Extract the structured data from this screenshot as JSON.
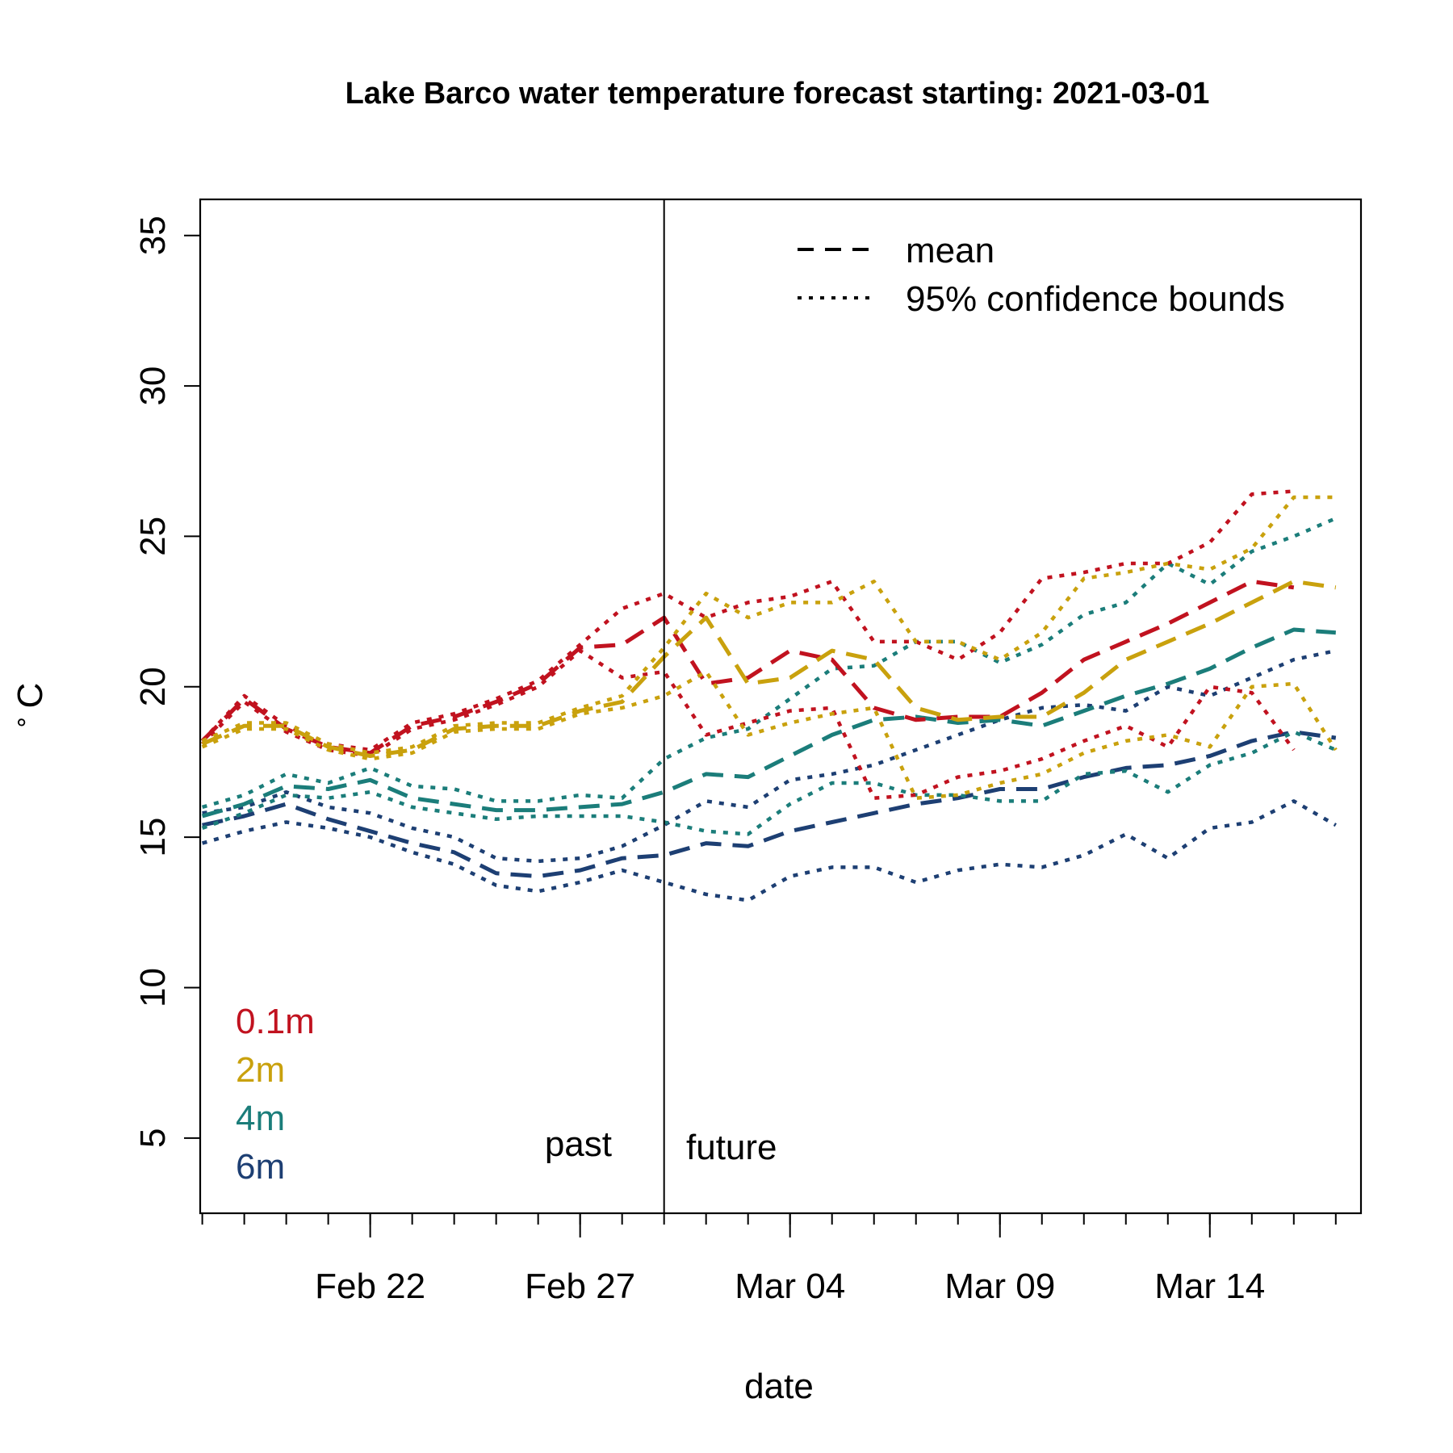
{
  "chart_data": {
    "type": "line",
    "title": "Lake Barco water temperature forecast starting: 2021-03-01",
    "xlabel": "date",
    "ylabel": "°C",
    "ylabel_parts": {
      "degree": "∘",
      "unit": "C"
    },
    "x_axis": {
      "start_date": "2021-02-18",
      "end_date": "2021-03-17",
      "tick_labels": [
        {
          "date": "2021-02-22",
          "label": "Feb 22"
        },
        {
          "date": "2021-02-27",
          "label": "Feb 27"
        },
        {
          "date": "2021-03-04",
          "label": "Mar 04"
        },
        {
          "date": "2021-03-09",
          "label": "Mar 09"
        },
        {
          "date": "2021-03-14",
          "label": "Mar 14"
        }
      ],
      "xlim": [
        "2021-02-17.9",
        "2021-03-17.6"
      ]
    },
    "y_axis": {
      "ylim": [
        2.5,
        36.2
      ],
      "ticks": [
        5,
        10,
        15,
        20,
        25,
        30,
        35
      ]
    },
    "forecast_start": "2021-03-01",
    "annotations": {
      "past": "past",
      "future": "future"
    },
    "legend": {
      "placement": "top-right",
      "entries": [
        {
          "label": "mean",
          "style": "dashed"
        },
        {
          "label": "95% confidence bounds",
          "style": "dotted"
        }
      ]
    },
    "depth_legend": {
      "placement": "bottom-left",
      "entries": [
        {
          "label": "0.1m",
          "color": "#c1121f"
        },
        {
          "label": "2m",
          "color": "#c9a10d"
        },
        {
          "label": "4m",
          "color": "#1b7d7a"
        },
        {
          "label": "6m",
          "color": "#1d3f73"
        }
      ]
    },
    "dates": [
      "2021-02-18",
      "2021-02-19",
      "2021-02-20",
      "2021-02-21",
      "2021-02-22",
      "2021-02-23",
      "2021-02-24",
      "2021-02-25",
      "2021-02-26",
      "2021-02-27",
      "2021-02-28",
      "2021-03-01",
      "2021-03-02",
      "2021-03-03",
      "2021-03-04",
      "2021-03-05",
      "2021-03-06",
      "2021-03-07",
      "2021-03-08",
      "2021-03-09",
      "2021-03-10",
      "2021-03-11",
      "2021-03-12",
      "2021-03-13",
      "2021-03-14",
      "2021-03-15",
      "2021-03-16",
      "2021-03-17"
    ],
    "series": [
      {
        "name": "0.1m",
        "color": "#c1121f",
        "mean": [
          18.2,
          19.6,
          18.6,
          18.0,
          17.8,
          18.7,
          19.0,
          19.5,
          20.1,
          21.3,
          21.4,
          22.3,
          20.1,
          20.3,
          21.2,
          20.9,
          19.3,
          18.9,
          19.0,
          19.0,
          19.8,
          20.9,
          21.5,
          22.1,
          22.8,
          23.5,
          23.3,
          null
        ],
        "upper": [
          18.2,
          19.7,
          18.7,
          18.1,
          17.9,
          18.8,
          19.1,
          19.6,
          20.2,
          21.4,
          22.6,
          23.1,
          22.3,
          22.8,
          23.0,
          23.5,
          21.5,
          21.5,
          20.9,
          21.8,
          23.6,
          23.8,
          24.1,
          24.1,
          24.8,
          26.4,
          26.5,
          null
        ],
        "lower": [
          18.1,
          19.5,
          18.5,
          17.9,
          17.7,
          18.6,
          18.9,
          19.4,
          20.0,
          21.2,
          20.3,
          20.5,
          18.4,
          18.8,
          19.2,
          19.3,
          16.3,
          16.4,
          17.0,
          17.2,
          17.6,
          18.2,
          18.7,
          18.0,
          20.0,
          19.8,
          17.9,
          null
        ]
      },
      {
        "name": "2m",
        "color": "#c9a10d",
        "mean": [
          18.1,
          18.7,
          18.7,
          18.0,
          17.7,
          17.9,
          18.6,
          18.7,
          18.7,
          19.2,
          19.5,
          21.0,
          22.3,
          20.1,
          20.3,
          21.2,
          20.9,
          19.3,
          18.9,
          19.0,
          19.0,
          19.8,
          20.9,
          21.5,
          22.1,
          22.8,
          23.5,
          23.3
        ],
        "upper": [
          18.2,
          18.8,
          18.8,
          18.1,
          17.8,
          18.0,
          18.7,
          18.8,
          18.8,
          19.3,
          19.7,
          21.3,
          23.1,
          22.3,
          22.8,
          22.8,
          23.5,
          21.5,
          21.5,
          20.9,
          21.8,
          23.6,
          23.8,
          24.1,
          23.9,
          24.6,
          26.3,
          26.3
        ],
        "lower": [
          18.0,
          18.6,
          18.6,
          17.9,
          17.6,
          17.8,
          18.5,
          18.6,
          18.6,
          19.1,
          19.3,
          19.7,
          20.5,
          18.4,
          18.8,
          19.1,
          19.3,
          16.3,
          16.4,
          16.8,
          17.1,
          17.8,
          18.2,
          18.4,
          18.0,
          20.0,
          20.1,
          17.9
        ]
      },
      {
        "name": "4m",
        "color": "#1b7d7a",
        "mean": [
          15.7,
          16.1,
          16.7,
          16.6,
          16.9,
          16.3,
          16.1,
          15.9,
          15.9,
          16.0,
          16.1,
          16.5,
          17.1,
          17.0,
          17.7,
          18.4,
          18.9,
          19.0,
          18.8,
          18.9,
          18.7,
          19.2,
          19.7,
          20.1,
          20.6,
          21.3,
          21.9,
          21.8
        ],
        "upper": [
          16.0,
          16.4,
          17.1,
          16.8,
          17.3,
          16.7,
          16.6,
          16.2,
          16.2,
          16.4,
          16.3,
          17.6,
          18.3,
          18.6,
          19.6,
          20.6,
          20.7,
          21.5,
          21.5,
          20.8,
          21.4,
          22.4,
          22.8,
          24.1,
          23.4,
          24.5,
          25.0,
          25.6
        ],
        "lower": [
          15.3,
          15.8,
          16.4,
          16.3,
          16.5,
          16.0,
          15.8,
          15.6,
          15.7,
          15.7,
          15.7,
          15.5,
          15.2,
          15.1,
          16.1,
          16.8,
          16.8,
          16.4,
          16.4,
          16.2,
          16.2,
          17.1,
          17.2,
          16.5,
          17.4,
          17.8,
          18.5,
          17.9
        ]
      },
      {
        "name": "6m",
        "color": "#1d3f73",
        "mean": [
          15.4,
          15.7,
          16.1,
          15.6,
          15.2,
          14.8,
          14.5,
          13.8,
          13.7,
          13.9,
          14.3,
          14.4,
          14.8,
          14.7,
          15.2,
          15.5,
          15.8,
          16.1,
          16.3,
          16.6,
          16.6,
          17.0,
          17.3,
          17.4,
          17.7,
          18.2,
          18.5,
          18.3
        ],
        "upper": [
          15.8,
          16.0,
          16.5,
          16.0,
          15.8,
          15.3,
          15.0,
          14.3,
          14.2,
          14.3,
          14.7,
          15.4,
          16.2,
          16.0,
          16.9,
          17.1,
          17.4,
          17.9,
          18.4,
          18.9,
          19.3,
          19.4,
          19.2,
          20.0,
          19.7,
          20.3,
          20.9,
          21.2
        ],
        "lower": [
          14.8,
          15.2,
          15.5,
          15.3,
          15.0,
          14.5,
          14.1,
          13.4,
          13.2,
          13.5,
          13.9,
          13.5,
          13.1,
          12.9,
          13.7,
          14.0,
          14.0,
          13.5,
          13.9,
          14.1,
          14.0,
          14.4,
          15.1,
          14.3,
          15.3,
          15.5,
          16.2,
          15.4
        ]
      }
    ]
  }
}
